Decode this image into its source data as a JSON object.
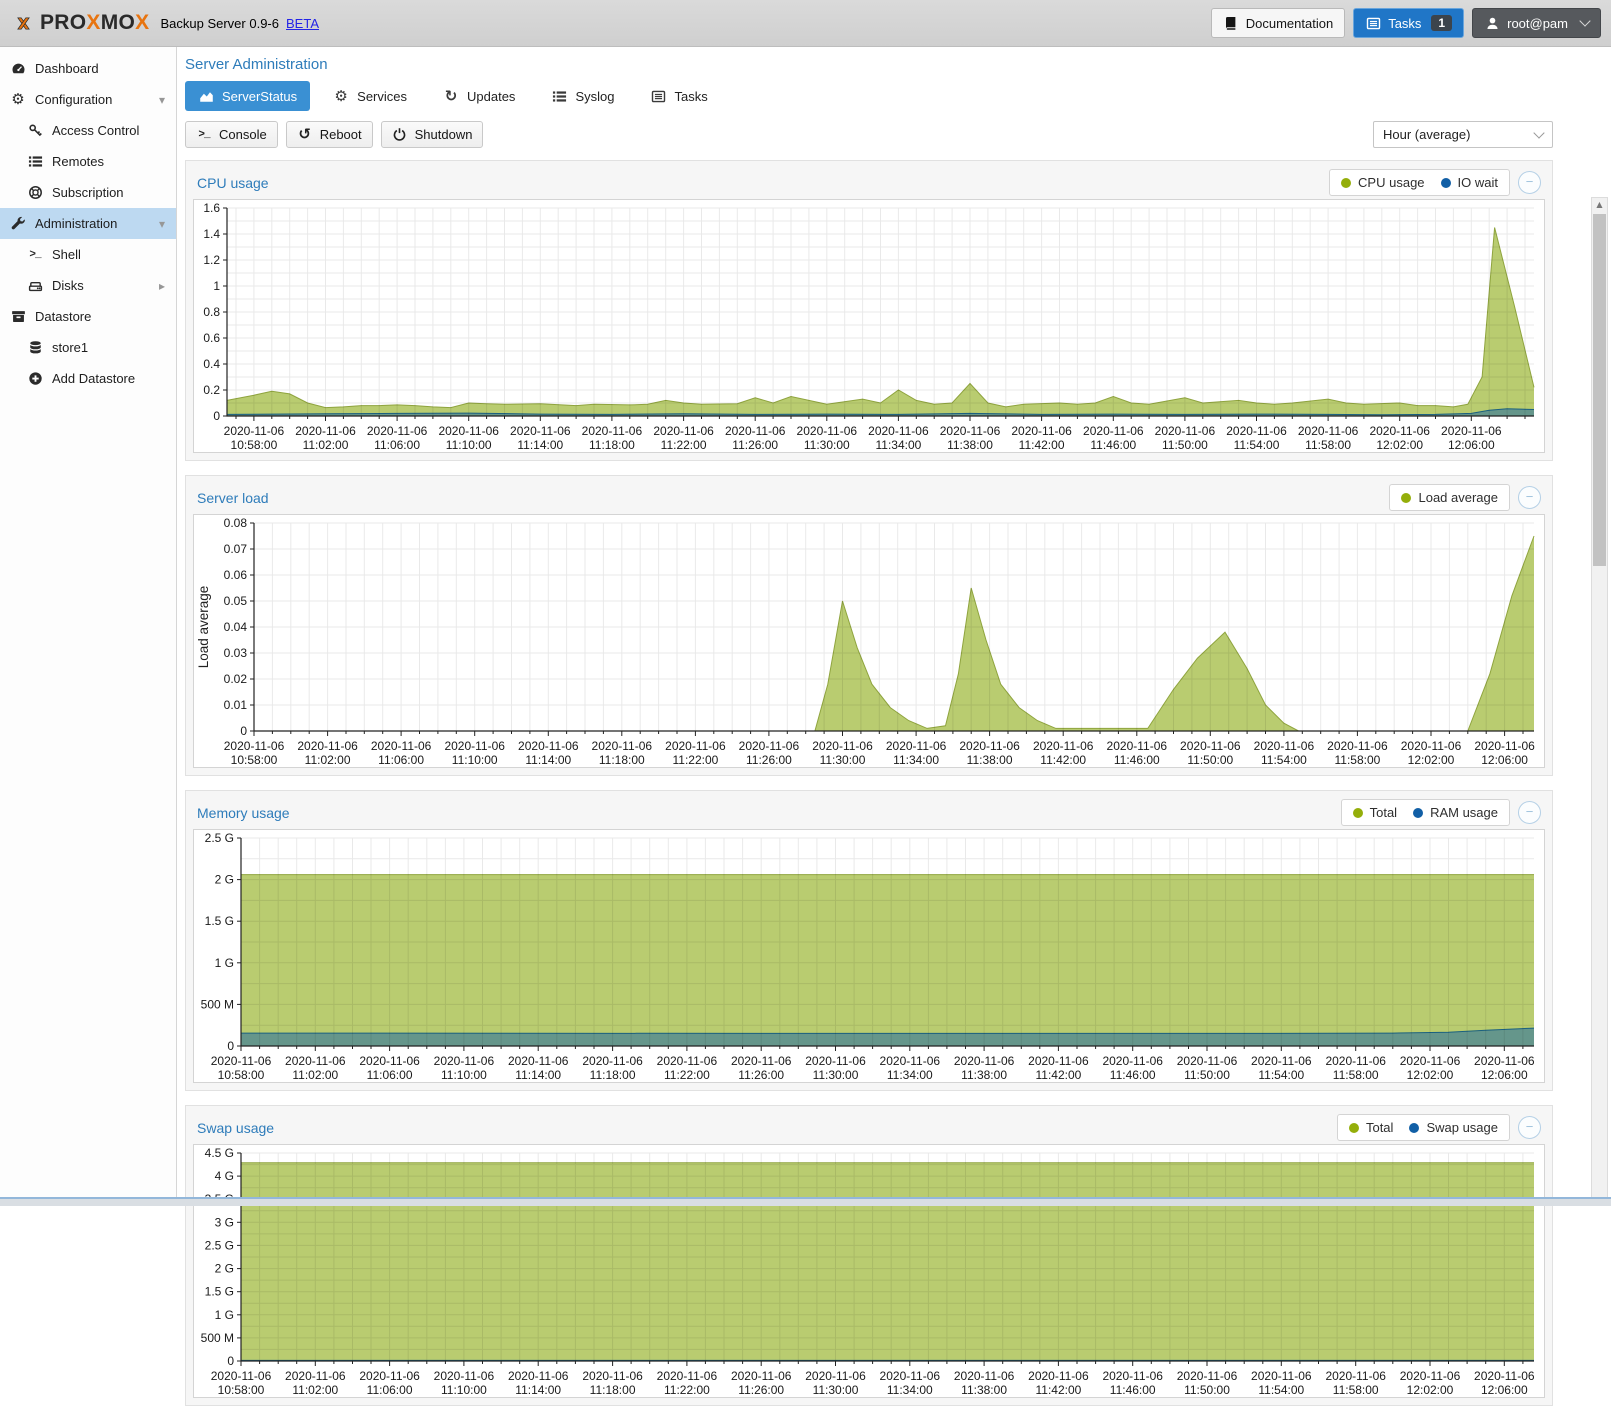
{
  "header": {
    "brand": {
      "p1": "PRO",
      "x1": "X",
      "p2": "MO",
      "x2": "X"
    },
    "subtitle": "Backup Server 0.9-6",
    "beta_link": "BETA",
    "documentation_label": "Documentation",
    "tasks_label": "Tasks",
    "tasks_badge": "1",
    "user_label": "root@pam",
    "icons": {
      "logo": "proxmox-x-logo",
      "documentation": "book-icon",
      "tasks": "list-alt-icon",
      "user": "user-icon"
    }
  },
  "sidebar": {
    "items": [
      {
        "label": "Dashboard",
        "icon": "tachometer-icon",
        "level": 0,
        "caret": "",
        "selected": false
      },
      {
        "label": "Configuration",
        "icon": "cogs-icon",
        "level": 0,
        "caret": "down",
        "selected": false
      },
      {
        "label": "Access Control",
        "icon": "key-icon",
        "level": 1,
        "caret": "",
        "selected": false
      },
      {
        "label": "Remotes",
        "icon": "list-icon",
        "level": 1,
        "caret": "",
        "selected": false
      },
      {
        "label": "Subscription",
        "icon": "life-ring-icon",
        "level": 1,
        "caret": "",
        "selected": false
      },
      {
        "label": "Administration",
        "icon": "wrench-icon",
        "level": 0,
        "caret": "down",
        "selected": true
      },
      {
        "label": "Shell",
        "icon": "terminal-icon",
        "level": 1,
        "caret": "",
        "selected": false
      },
      {
        "label": "Disks",
        "icon": "hdd-icon",
        "level": 1,
        "caret": "right",
        "selected": false
      },
      {
        "label": "Datastore",
        "icon": "archive-icon",
        "level": 0,
        "caret": "",
        "selected": false
      },
      {
        "label": "store1",
        "icon": "database-icon",
        "level": 1,
        "caret": "",
        "selected": false
      },
      {
        "label": "Add Datastore",
        "icon": "plus-circle-icon",
        "level": 1,
        "caret": "",
        "selected": false
      }
    ]
  },
  "main": {
    "title": "Server Administration",
    "tabs": [
      {
        "label": "ServerStatus",
        "icon": "area-chart-icon",
        "active": true
      },
      {
        "label": "Services",
        "icon": "cogs-icon",
        "active": false
      },
      {
        "label": "Updates",
        "icon": "refresh-icon",
        "active": false
      },
      {
        "label": "Syslog",
        "icon": "list-icon",
        "active": false
      },
      {
        "label": "Tasks",
        "icon": "list-alt-icon",
        "active": false
      }
    ],
    "toolbar": {
      "buttons": [
        {
          "label": "Console",
          "icon": "terminal-icon"
        },
        {
          "label": "Reboot",
          "icon": "undo-icon"
        },
        {
          "label": "Shutdown",
          "icon": "power-icon"
        }
      ],
      "timeframe_value": "Hour (average)"
    }
  },
  "colors": {
    "accent_blue": "#3a90d3",
    "title_blue": "#2e7cba",
    "selected_row": "#bdd9f1",
    "series_green": "#94ae0a",
    "series_green_fill": "#b9cc70",
    "series_green_stroke": "#8fa43e",
    "series_blue": "#115fa6",
    "series_blue_fill": "rgba(17,95,166,0.5)",
    "series_blue_stroke": "#1a607f",
    "header_bg": "#d6d6d6"
  },
  "chart_data": [
    {
      "type": "area",
      "title": "CPU usage",
      "legend": [
        {
          "label": "CPU usage",
          "color": "#94ae0a"
        },
        {
          "label": "IO wait",
          "color": "#115fa6"
        }
      ],
      "ylabel": "",
      "ylim": [
        0,
        1.6
      ],
      "yticks": [
        [
          "0",
          0
        ],
        [
          "0.2",
          0.2
        ],
        [
          "0.4",
          0.4
        ],
        [
          "0.6",
          0.6
        ],
        [
          "0.8",
          0.8
        ],
        [
          "1",
          1
        ],
        [
          "1.2",
          1.2
        ],
        [
          "1.4",
          1.4
        ],
        [
          "1.6",
          1.6
        ]
      ],
      "y_minor": 0.1,
      "xlim": [
        -1.5,
        71.5
      ],
      "x_tick_date": "2020-11-06",
      "x_tick_times": [
        "10:58:00",
        "11:02:00",
        "11:06:00",
        "11:10:00",
        "11:14:00",
        "11:18:00",
        "11:22:00",
        "11:26:00",
        "11:30:00",
        "11:34:00",
        "11:38:00",
        "11:42:00",
        "11:46:00",
        "11:50:00",
        "11:54:00",
        "11:58:00",
        "12:02:00",
        "12:06:00"
      ],
      "series": [
        {
          "name": "CPU usage",
          "color": "#94ae0a",
          "points": [
            [
              -1.5,
              0.12
            ],
            [
              0,
              0.16
            ],
            [
              1,
              0.19
            ],
            [
              2,
              0.17
            ],
            [
              3,
              0.1
            ],
            [
              4,
              0.065
            ],
            [
              5,
              0.07
            ],
            [
              6,
              0.08
            ],
            [
              7,
              0.08
            ],
            [
              8,
              0.085
            ],
            [
              9,
              0.08
            ],
            [
              10,
              0.07
            ],
            [
              11,
              0.065
            ],
            [
              12,
              0.1
            ],
            [
              13,
              0.095
            ],
            [
              14,
              0.09
            ],
            [
              16,
              0.095
            ],
            [
              18,
              0.08
            ],
            [
              19,
              0.09
            ],
            [
              21,
              0.085
            ],
            [
              22,
              0.09
            ],
            [
              23,
              0.12
            ],
            [
              24,
              0.1
            ],
            [
              25,
              0.09
            ],
            [
              27,
              0.095
            ],
            [
              28,
              0.14
            ],
            [
              29,
              0.1
            ],
            [
              30,
              0.15
            ],
            [
              31,
              0.12
            ],
            [
              32,
              0.09
            ],
            [
              34,
              0.13
            ],
            [
              35,
              0.1
            ],
            [
              36,
              0.2
            ],
            [
              37,
              0.12
            ],
            [
              38,
              0.09
            ],
            [
              39,
              0.1
            ],
            [
              40,
              0.25
            ],
            [
              41,
              0.1
            ],
            [
              42,
              0.07
            ],
            [
              43,
              0.09
            ],
            [
              45,
              0.1
            ],
            [
              46,
              0.09
            ],
            [
              47,
              0.1
            ],
            [
              48,
              0.15
            ],
            [
              49,
              0.1
            ],
            [
              50,
              0.09
            ],
            [
              52,
              0.14
            ],
            [
              53,
              0.1
            ],
            [
              55,
              0.12
            ],
            [
              56,
              0.1
            ],
            [
              57,
              0.09
            ],
            [
              58,
              0.1
            ],
            [
              60,
              0.13
            ],
            [
              61,
              0.1
            ],
            [
              62,
              0.09
            ],
            [
              64,
              0.1
            ],
            [
              65,
              0.08
            ],
            [
              66,
              0.08
            ],
            [
              67,
              0.07
            ],
            [
              67.8,
              0.09
            ],
            [
              68.6,
              0.3
            ],
            [
              69.3,
              1.45
            ],
            [
              70.4,
              0.85
            ],
            [
              71.5,
              0.22
            ]
          ]
        },
        {
          "name": "IO wait",
          "color": "#115fa6",
          "points": [
            [
              -1.5,
              0.012
            ],
            [
              4,
              0.018
            ],
            [
              8,
              0.02
            ],
            [
              12,
              0.022
            ],
            [
              16,
              0.015
            ],
            [
              20,
              0.012
            ],
            [
              24,
              0.018
            ],
            [
              28,
              0.012
            ],
            [
              32,
              0.015
            ],
            [
              36,
              0.012
            ],
            [
              40,
              0.02
            ],
            [
              44,
              0.012
            ],
            [
              48,
              0.015
            ],
            [
              52,
              0.012
            ],
            [
              56,
              0.015
            ],
            [
              60,
              0.012
            ],
            [
              63,
              0.01
            ],
            [
              66,
              0.012
            ],
            [
              68,
              0.02
            ],
            [
              69,
              0.045
            ],
            [
              70,
              0.055
            ],
            [
              71.5,
              0.05
            ]
          ]
        }
      ]
    },
    {
      "type": "area",
      "title": "Server load",
      "legend": [
        {
          "label": "Load average",
          "color": "#94ae0a"
        }
      ],
      "ylabel": "Load average",
      "ylim": [
        0,
        0.08
      ],
      "yticks": [
        [
          "0",
          0
        ],
        [
          "0.01",
          0.01
        ],
        [
          "0.02",
          0.02
        ],
        [
          "0.03",
          0.03
        ],
        [
          "0.04",
          0.04
        ],
        [
          "0.05",
          0.05
        ],
        [
          "0.06",
          0.06
        ],
        [
          "0.07",
          0.07
        ],
        [
          "0.08",
          0.08
        ]
      ],
      "y_minor": null,
      "xlim": [
        0,
        69.6
      ],
      "x_tick_date": "2020-11-06",
      "x_tick_times": [
        "10:58:00",
        "11:02:00",
        "11:06:00",
        "11:10:00",
        "11:14:00",
        "11:18:00",
        "11:22:00",
        "11:26:00",
        "11:30:00",
        "11:34:00",
        "11:38:00",
        "11:42:00",
        "11:46:00",
        "11:50:00",
        "11:54:00",
        "11:58:00",
        "12:02:00",
        "12:06:00"
      ],
      "series": [
        {
          "name": "Load average",
          "color": "#94ae0a",
          "points": [
            [
              0,
              0
            ],
            [
              30.5,
              0
            ],
            [
              31.2,
              0.018
            ],
            [
              32,
              0.05
            ],
            [
              32.8,
              0.032
            ],
            [
              33.6,
              0.018
            ],
            [
              34.6,
              0.009
            ],
            [
              35.6,
              0.004
            ],
            [
              36.6,
              0.001
            ],
            [
              37.6,
              0.002
            ],
            [
              38.3,
              0.022
            ],
            [
              39,
              0.055
            ],
            [
              39.8,
              0.035
            ],
            [
              40.6,
              0.018
            ],
            [
              41.6,
              0.009
            ],
            [
              42.6,
              0.004
            ],
            [
              43.6,
              0.001
            ],
            [
              48.6,
              0.001
            ],
            [
              50,
              0.016
            ],
            [
              51.3,
              0.028
            ],
            [
              52.8,
              0.038
            ],
            [
              54,
              0.024
            ],
            [
              55,
              0.01
            ],
            [
              56,
              0.003
            ],
            [
              56.8,
              0
            ],
            [
              66,
              0
            ],
            [
              67.2,
              0.022
            ],
            [
              68.4,
              0.052
            ],
            [
              69.6,
              0.075
            ]
          ]
        }
      ]
    },
    {
      "type": "area",
      "title": "Memory usage",
      "legend": [
        {
          "label": "Total",
          "color": "#94ae0a"
        },
        {
          "label": "RAM usage",
          "color": "#115fa6"
        }
      ],
      "ylabel": "",
      "ylim": [
        0,
        2.5
      ],
      "yticks": [
        [
          "0",
          0
        ],
        [
          "500 M",
          0.5
        ],
        [
          "1 G",
          1
        ],
        [
          "1.5 G",
          1.5
        ],
        [
          "2 G",
          2
        ],
        [
          "2.5 G",
          2.5
        ]
      ],
      "y_minor": 0.25,
      "xlim": [
        0,
        69.6
      ],
      "x_tick_date": "2020-11-06",
      "x_tick_times": [
        "10:58:00",
        "11:02:00",
        "11:06:00",
        "11:10:00",
        "11:14:00",
        "11:18:00",
        "11:22:00",
        "11:26:00",
        "11:30:00",
        "11:34:00",
        "11:38:00",
        "11:42:00",
        "11:46:00",
        "11:50:00",
        "11:54:00",
        "11:58:00",
        "12:02:00",
        "12:06:00"
      ],
      "series": [
        {
          "name": "Total",
          "color": "#94ae0a",
          "points": [
            [
              0,
              2.06
            ],
            [
              69.6,
              2.06
            ]
          ]
        },
        {
          "name": "RAM usage",
          "color": "#115fa6",
          "points": [
            [
              0,
              0.155
            ],
            [
              30,
              0.152
            ],
            [
              55,
              0.152
            ],
            [
              62,
              0.155
            ],
            [
              65,
              0.165
            ],
            [
              67,
              0.19
            ],
            [
              69.6,
              0.215
            ]
          ]
        }
      ]
    },
    {
      "type": "area",
      "title": "Swap usage",
      "legend": [
        {
          "label": "Total",
          "color": "#94ae0a"
        },
        {
          "label": "Swap usage",
          "color": "#115fa6"
        }
      ],
      "ylabel": "",
      "ylim": [
        0,
        4.5
      ],
      "yticks": [
        [
          "0",
          0
        ],
        [
          "500 M",
          0.5
        ],
        [
          "1 G",
          1
        ],
        [
          "1.5 G",
          1.5
        ],
        [
          "2 G",
          2
        ],
        [
          "2.5 G",
          2.5
        ],
        [
          "3 G",
          3
        ],
        [
          "3.5 G",
          3.5
        ],
        [
          "4 G",
          4
        ],
        [
          "4.5 G",
          4.5
        ]
      ],
      "y_minor": 0.25,
      "xlim": [
        0,
        69.6
      ],
      "x_tick_date": "2020-11-06",
      "x_tick_times": [
        "10:58:00",
        "11:02:00",
        "11:06:00",
        "11:10:00",
        "11:14:00",
        "11:18:00",
        "11:22:00",
        "11:26:00",
        "11:30:00",
        "11:34:00",
        "11:38:00",
        "11:42:00",
        "11:46:00",
        "11:50:00",
        "11:54:00",
        "11:58:00",
        "12:02:00",
        "12:06:00"
      ],
      "series": [
        {
          "name": "Total",
          "color": "#94ae0a",
          "points": [
            [
              0,
              4.29
            ],
            [
              69.6,
              4.29
            ]
          ]
        },
        {
          "name": "Swap usage",
          "color": "#115fa6",
          "points": [
            [
              0,
              0.012
            ],
            [
              69.6,
              0.012
            ]
          ]
        }
      ]
    }
  ]
}
